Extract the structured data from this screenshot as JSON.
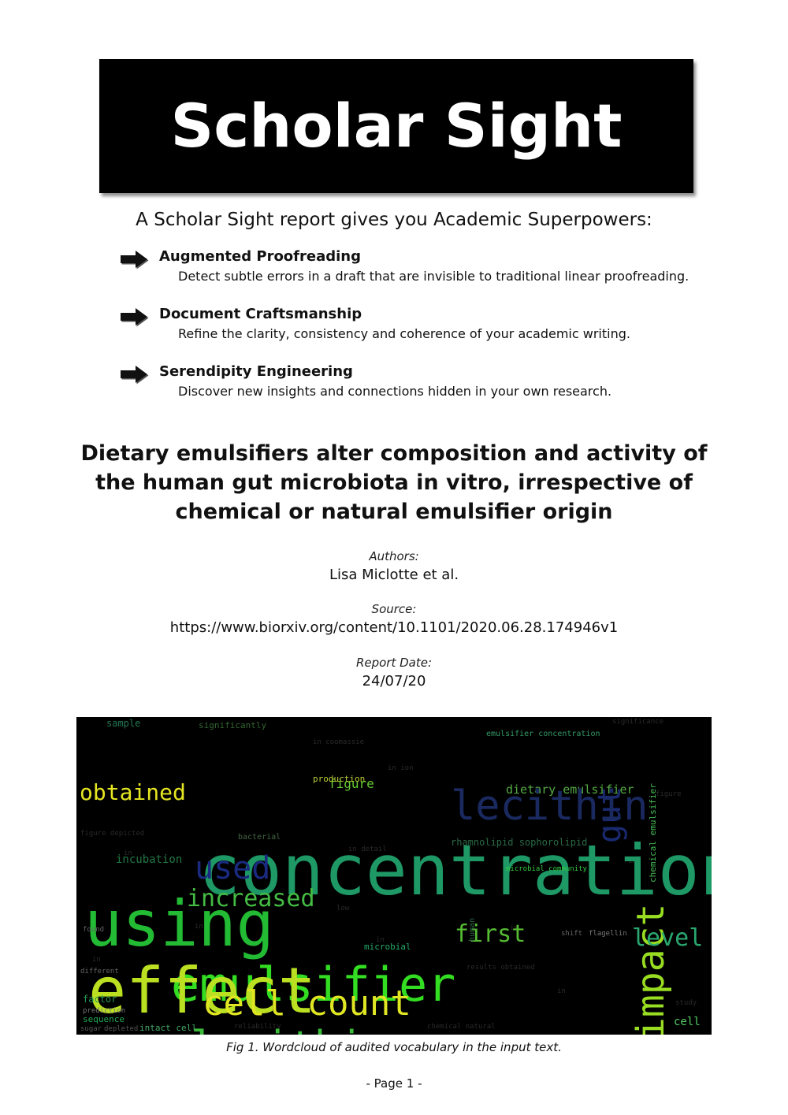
{
  "banner": {
    "title": "Scholar Sight"
  },
  "tagline": "A Scholar Sight report gives you Academic Superpowers:",
  "features": [
    {
      "title": "Augmented Proofreading",
      "description": "Detect subtle errors in a draft that are invisible to traditional linear proofreading."
    },
    {
      "title": "Document Craftsmanship",
      "description": "Refine the clarity, consistency and coherence of your academic writing."
    },
    {
      "title": "Serendipity Engineering",
      "description": "Discover new insights and connections hidden in your own research."
    }
  ],
  "paper": {
    "title_lines": [
      "Dietary emulsifiers alter composition and activity of",
      "the human gut microbiota in vitro, irrespective of",
      "chemical or natural emulsifier origin"
    ]
  },
  "meta": {
    "authors_label": "Authors:",
    "authors_value": "Lisa Miclotte et al.",
    "source_label": "Source:",
    "source_value": "https://www.biorxiv.org/content/10.1101/2020.06.28.174946v1",
    "date_label": "Report Date:",
    "date_value": "24/07/20"
  },
  "wordcloud": {
    "words": [
      {
        "text": "emulsifier",
        "color": "#33dd22"
      },
      {
        "text": "concentration",
        "color": "#1e9966"
      },
      {
        "text": "using",
        "color": "#22bb33"
      },
      {
        "text": "effect",
        "color": "#bbe022"
      },
      {
        "text": "soy lecithin",
        "color": "#3cbb3a"
      },
      {
        "text": "cell count",
        "color": "#e0e622"
      },
      {
        "text": "impact",
        "color": "#99dd22"
      },
      {
        "text": "used",
        "color": "#1a2a80"
      },
      {
        "text": "increased",
        "color": "#44bb44"
      },
      {
        "text": "first",
        "color": "#55bb33"
      },
      {
        "text": "level",
        "color": "#2aa870"
      },
      {
        "text": "obtained",
        "color": "#e6e622"
      },
      {
        "text": "dietary emulsifier",
        "color": "#55aa44"
      },
      {
        "text": "figure",
        "color": "#66cc33"
      },
      {
        "text": "sample",
        "color": "#227755"
      },
      {
        "text": "significantly",
        "color": "#336633"
      },
      {
        "text": "production",
        "color": "#bbcc33"
      },
      {
        "text": "incubation",
        "color": "#227744"
      },
      {
        "text": "microbial",
        "color": "#22aa66"
      },
      {
        "text": "microbial community",
        "color": "#33cc44"
      },
      {
        "text": "chemical emulsifier",
        "color": "#44bb55"
      },
      {
        "text": "factor",
        "color": "#229955"
      },
      {
        "text": "sequence",
        "color": "#22aa55"
      },
      {
        "text": "cell",
        "color": "#55cc66"
      },
      {
        "text": "found",
        "color": "#666666"
      },
      {
        "text": "different",
        "color": "#666666"
      },
      {
        "text": "bacterial",
        "color": "#446644"
      },
      {
        "text": "intact cell",
        "color": "#44aa66"
      },
      {
        "text": "prediction",
        "color": "#777777"
      },
      {
        "text": "sugar",
        "color": "#555555"
      },
      {
        "text": "depleted",
        "color": "#555555"
      },
      {
        "text": "human",
        "color": "#336644"
      },
      {
        "text": "shift",
        "color": "#666666"
      },
      {
        "text": "flagellin",
        "color": "#777777"
      },
      {
        "text": "emulsifier concentration",
        "color": "#339966"
      },
      {
        "text": "rhamnolipid sophorolipid",
        "color": "#2a6a44"
      },
      {
        "text": "gut",
        "color": "#1a2a70"
      },
      {
        "text": "lecithin",
        "color": "#1a2a60"
      }
    ]
  },
  "caption": "Fig 1. Wordcloud of audited vocabulary in the input text.",
  "footer": "-  Page 1  -"
}
